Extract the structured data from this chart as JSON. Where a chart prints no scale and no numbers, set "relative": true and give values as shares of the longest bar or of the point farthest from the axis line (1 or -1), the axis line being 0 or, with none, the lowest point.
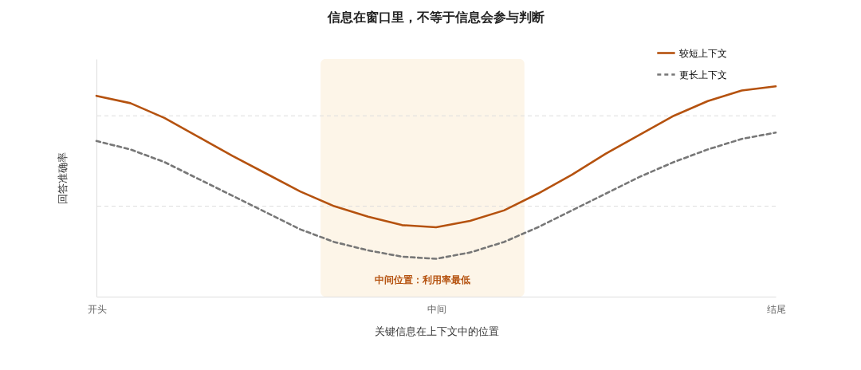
{
  "chart_data": {
    "type": "line",
    "title": "信息在窗口里，不等于信息会参与判断",
    "xlabel": "关键信息在上下文中的位置",
    "ylabel": "回答准确率",
    "relative": true,
    "categories": [
      "开头",
      null,
      null,
      null,
      null,
      null,
      null,
      null,
      null,
      null,
      "中间",
      null,
      null,
      null,
      null,
      null,
      null,
      null,
      null,
      null,
      "结尾"
    ],
    "series": [
      {
        "name": "较短上下文",
        "color": "#b5520f",
        "line_style": "solid",
        "values": [
          0.955,
          0.92,
          0.85,
          0.76,
          0.67,
          0.585,
          0.5,
          0.43,
          0.38,
          0.34,
          0.33,
          0.36,
          0.41,
          0.49,
          0.58,
          0.68,
          0.77,
          0.86,
          0.93,
          0.98,
          1
        ]
      },
      {
        "name": "更长上下文",
        "color": "#777777",
        "line_style": "dashed",
        "values": [
          0.74,
          0.7,
          0.64,
          0.56,
          0.48,
          0.4,
          0.32,
          0.26,
          0.22,
          0.19,
          0.18,
          0.21,
          0.26,
          0.33,
          0.41,
          0.49,
          0.57,
          0.64,
          0.7,
          0.75,
          0.78
        ]
      }
    ],
    "annotations": [
      "中间位置：利用率最低"
    ],
    "ref_lines": [
      {
        "axis": "y",
        "value": 0.86,
        "color": "#dddddd",
        "line_style": "dashed"
      },
      {
        "axis": "y",
        "value": 0.43,
        "color": "#dddddd",
        "line_style": "dashed"
      }
    ],
    "legend": "top right",
    "marker": "none",
    "grid": false
  }
}
